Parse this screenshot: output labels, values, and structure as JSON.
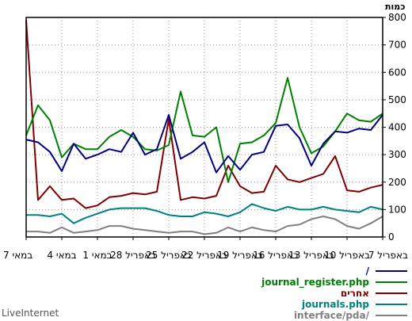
{
  "brand": "LiveInternet",
  "chart_data": {
    "type": "line",
    "ylabel": "כמות",
    "ylim": [
      0,
      800
    ],
    "yticks": [
      0,
      100,
      200,
      300,
      400,
      500,
      600,
      700,
      800
    ],
    "grid": true,
    "x_direction": "right-to-left",
    "x_ticks": [
      {
        "label": "7 באפריל",
        "index": 0
      },
      {
        "label": "10 באפריל",
        "index": 3
      },
      {
        "label": "13 באפריל",
        "index": 6
      },
      {
        "label": "16 באפריל",
        "index": 9
      },
      {
        "label": "19 באפריל",
        "index": 12
      },
      {
        "label": "22 באפריל",
        "index": 15
      },
      {
        "label": "25 באפריל",
        "index": 18
      },
      {
        "label": "28 באפריל",
        "index": 21
      },
      {
        "label": "1 במאי",
        "index": 24
      },
      {
        "label": "4 במאי",
        "index": 27
      },
      {
        "label": "7 במאי",
        "index": 30
      }
    ],
    "legend_position": "bottom-right",
    "series": [
      {
        "name": "/",
        "color": "#000080",
        "values": [
          445,
          390,
          395,
          380,
          385,
          340,
          260,
          360,
          410,
          405,
          310,
          300,
          245,
          295,
          235,
          345,
          310,
          285,
          445,
          320,
          300,
          380,
          310,
          320,
          300,
          285,
          340,
          240,
          310,
          345,
          355
        ]
      },
      {
        "name": "journal_register.php",
        "color": "#008000",
        "values": [
          450,
          420,
          425,
          450,
          385,
          330,
          305,
          400,
          580,
          415,
          370,
          345,
          340,
          200,
          400,
          365,
          370,
          530,
          335,
          315,
          320,
          365,
          390,
          365,
          320,
          320,
          340,
          290,
          425,
          480,
          370
        ]
      },
      {
        "name": "אחרים",
        "color": "#800000",
        "values": [
          190,
          180,
          165,
          170,
          295,
          230,
          215,
          200,
          210,
          260,
          165,
          160,
          185,
          260,
          150,
          140,
          145,
          135,
          430,
          165,
          155,
          160,
          150,
          145,
          115,
          105,
          140,
          135,
          185,
          135,
          790
        ]
      },
      {
        "name": "journals.php",
        "color": "#008080",
        "values": [
          100,
          110,
          90,
          95,
          100,
          110,
          100,
          100,
          110,
          95,
          105,
          120,
          90,
          75,
          85,
          90,
          75,
          75,
          80,
          95,
          105,
          105,
          105,
          100,
          85,
          70,
          50,
          85,
          75,
          80,
          80
        ]
      },
      {
        "name": "interface/pda/",
        "color": "#808080",
        "values": [
          75,
          50,
          30,
          40,
          65,
          75,
          65,
          45,
          40,
          20,
          25,
          35,
          20,
          35,
          15,
          10,
          20,
          20,
          15,
          20,
          25,
          30,
          40,
          40,
          25,
          20,
          15,
          35,
          15,
          20,
          20
        ]
      }
    ]
  }
}
